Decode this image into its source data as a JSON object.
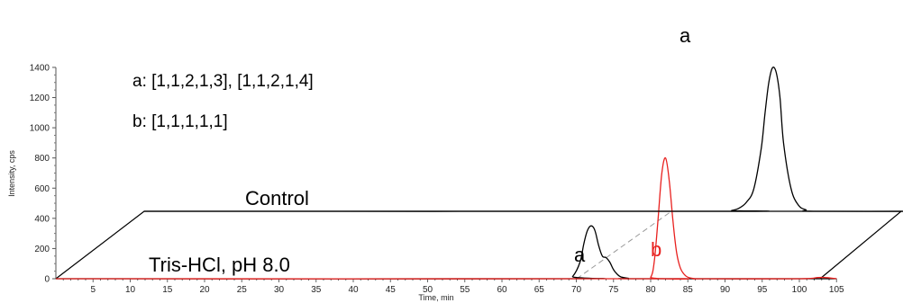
{
  "chart_data": {
    "type": "line",
    "ylabel": "Intensity, cps",
    "xlabel": "Time, min",
    "ylim": [
      0,
      1400
    ],
    "yticks": [
      0,
      200,
      400,
      600,
      800,
      1000,
      1200,
      1400
    ],
    "xticks": [
      5,
      10,
      15,
      20,
      25,
      30,
      35,
      40,
      45,
      50,
      55,
      60,
      65,
      70,
      75,
      80,
      85,
      90,
      95,
      100,
      105
    ],
    "legend_lines": [
      "a: [1,1,2,1,3], [1,1,2,1,4]",
      "b: [1,1,1,1,1]"
    ],
    "trace_labels": {
      "control": "Control",
      "tris": "Tris-HCl, pH 8.0"
    },
    "peak_labels": [
      {
        "text": "a",
        "trace": "control",
        "color": "#000000"
      },
      {
        "text": "a",
        "trace": "tris",
        "color": "#000000"
      },
      {
        "text": "b",
        "trace": "tris",
        "color": "#e8211f"
      }
    ],
    "series": [
      {
        "trace": "tris",
        "color": "#000000",
        "x": [
          0,
          68.5,
          69.5,
          70.5,
          71.0,
          71.5,
          72.0,
          72.5,
          73.0,
          73.5,
          74.0,
          74.5,
          75.0,
          75.5,
          76.0,
          77.0,
          78.0,
          105
        ],
        "y": [
          0,
          0,
          15,
          110,
          230,
          320,
          350,
          320,
          220,
          150,
          140,
          110,
          60,
          30,
          12,
          3,
          0,
          0
        ]
      },
      {
        "trace": "tris",
        "color": "#e8211f",
        "x": [
          0,
          79.0,
          80.0,
          80.5,
          81.0,
          81.5,
          82.0,
          82.5,
          83.0,
          83.5,
          84.0,
          84.5,
          85.0,
          86.0,
          87.0,
          100,
          102.5,
          103.5,
          105
        ],
        "y": [
          0,
          0,
          10,
          120,
          400,
          700,
          800,
          650,
          380,
          170,
          70,
          30,
          10,
          0,
          0,
          0,
          8,
          8,
          0
        ]
      },
      {
        "trace": "control",
        "color": "#000000",
        "x": [
          0,
          78.0,
          79.0,
          80.0,
          81.0,
          82.0,
          83.0,
          83.5,
          84.0,
          84.5,
          85.0,
          85.5,
          86.0,
          87.0,
          88.0,
          89.0,
          90.0,
          105
        ],
        "y": [
          0,
          0,
          5,
          20,
          60,
          150,
          420,
          650,
          850,
          950,
          920,
          760,
          450,
          150,
          40,
          10,
          0,
          0
        ]
      }
    ]
  }
}
